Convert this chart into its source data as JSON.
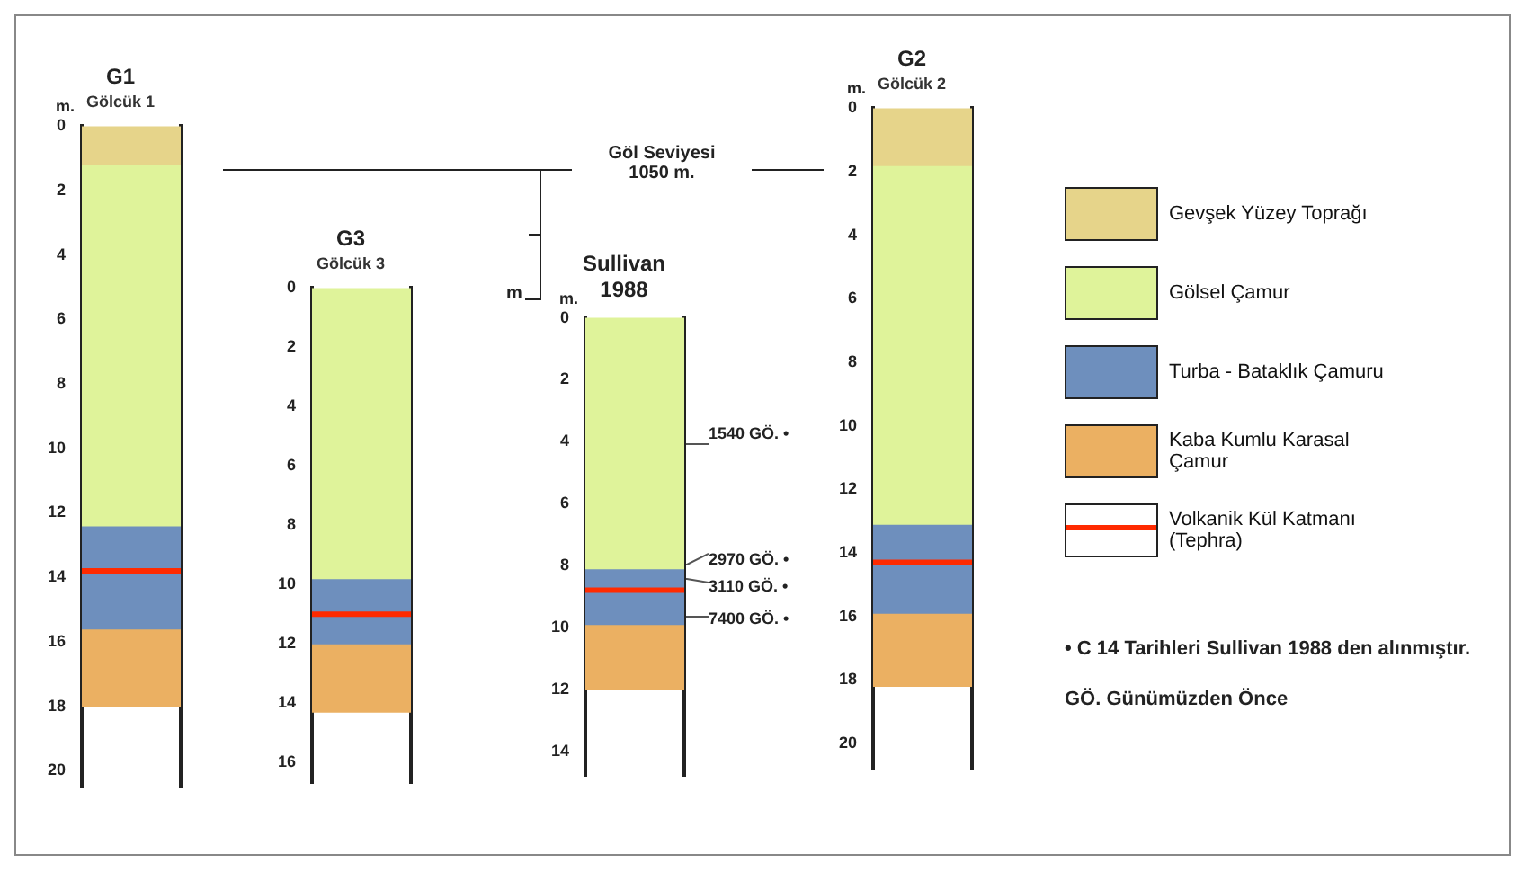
{
  "chart_data": [
    {
      "type": "bar",
      "stacked": true,
      "title": "G1",
      "subtitle": "Gölcük 1",
      "ylabel": "m.",
      "categories": [
        null
      ],
      "ylim": [
        20.5,
        0
      ],
      "yticks": [
        0,
        2,
        4,
        6,
        8,
        10,
        12,
        14,
        16,
        18,
        20
      ],
      "grid": false,
      "legend": false,
      "tick_labels": "y",
      "series": [
        {
          "color": "#e6d48a",
          "values": [
            1.2
          ]
        },
        {
          "color": "#dff39a",
          "values": [
            11.2
          ]
        },
        {
          "color": "#6e8fbd",
          "values": [
            3.2
          ]
        },
        {
          "color": "#ebb062",
          "values": [
            2.4
          ]
        }
      ],
      "ref_lines": [
        {
          "axis": "y",
          "value": 13.8,
          "color": "#ff2a00"
        }
      ],
      "annotations": [
        "Göl Seviyesi\n1050 m.",
        "m"
      ]
    },
    {
      "type": "bar",
      "stacked": true,
      "title": "G3",
      "subtitle": "Gölcük 3",
      "categories": [
        null
      ],
      "ylim": [
        16.7,
        0
      ],
      "yticks": [
        0,
        2,
        4,
        6,
        8,
        10,
        12,
        14,
        16
      ],
      "grid": false,
      "legend": false,
      "tick_labels": "y",
      "series": [
        {
          "color": "#dff39a",
          "values": [
            9.8
          ]
        },
        {
          "color": "#6e8fbd",
          "values": [
            2.2
          ]
        },
        {
          "color": "#ebb062",
          "values": [
            2.3
          ]
        }
      ],
      "ref_lines": [
        {
          "axis": "y",
          "value": 11,
          "color": "#ff2a00"
        }
      ]
    },
    {
      "type": "bar",
      "stacked": true,
      "title": "Sullivan\n1988",
      "ylabel": "m.",
      "categories": [
        null
      ],
      "ylim": [
        14.8,
        0
      ],
      "yticks": [
        0,
        2,
        4,
        6,
        8,
        10,
        12,
        14
      ],
      "grid": false,
      "legend": false,
      "tick_labels": "y",
      "series": [
        {
          "color": "#dff39a",
          "values": [
            8.1
          ]
        },
        {
          "color": "#6e8fbd",
          "values": [
            1.8
          ]
        },
        {
          "color": "#ebb062",
          "values": [
            2.1
          ]
        }
      ],
      "ref_lines": [
        {
          "axis": "y",
          "value": 8.8,
          "color": "#ff2a00"
        }
      ],
      "annotations": [
        "1540 GÖ. •",
        "2970 GÖ. •",
        "3110 GÖ. •",
        "7400 GÖ. •",
        "• C 14 Tarihleri Sullivan 1988 den alınmıştır.",
        "GÖ. Günümüzden Önce"
      ]
    },
    {
      "type": "bar",
      "stacked": true,
      "title": "G2",
      "subtitle": "Gölcük 2",
      "ylabel": "m.",
      "categories": [
        null
      ],
      "ylim": [
        20.8,
        0
      ],
      "yticks": [
        0,
        2,
        4,
        6,
        8,
        10,
        12,
        14,
        16,
        18,
        20
      ],
      "grid": false,
      "legend": "right",
      "tick_labels": "y",
      "series": [
        {
          "name": "Gevşek Yüzey Toprağı",
          "color": "#e6d48a",
          "values": [
            1.8
          ]
        },
        {
          "name": "Gölsel Çamur",
          "color": "#dff39a",
          "values": [
            11.3
          ]
        },
        {
          "name": "Turba - Bataklık Çamuru",
          "color": "#6e8fbd",
          "values": [
            2.8
          ]
        },
        {
          "name": "Kaba Kumlu Karasal Çamur",
          "color": "#ebb062",
          "values": [
            2.3
          ]
        }
      ],
      "ref_lines": [
        {
          "axis": "y",
          "value": 14.3,
          "color": "#ff2a00",
          "label": "Volkanik Kül Katmanı\n(Tephra)"
        }
      ]
    }
  ]
}
